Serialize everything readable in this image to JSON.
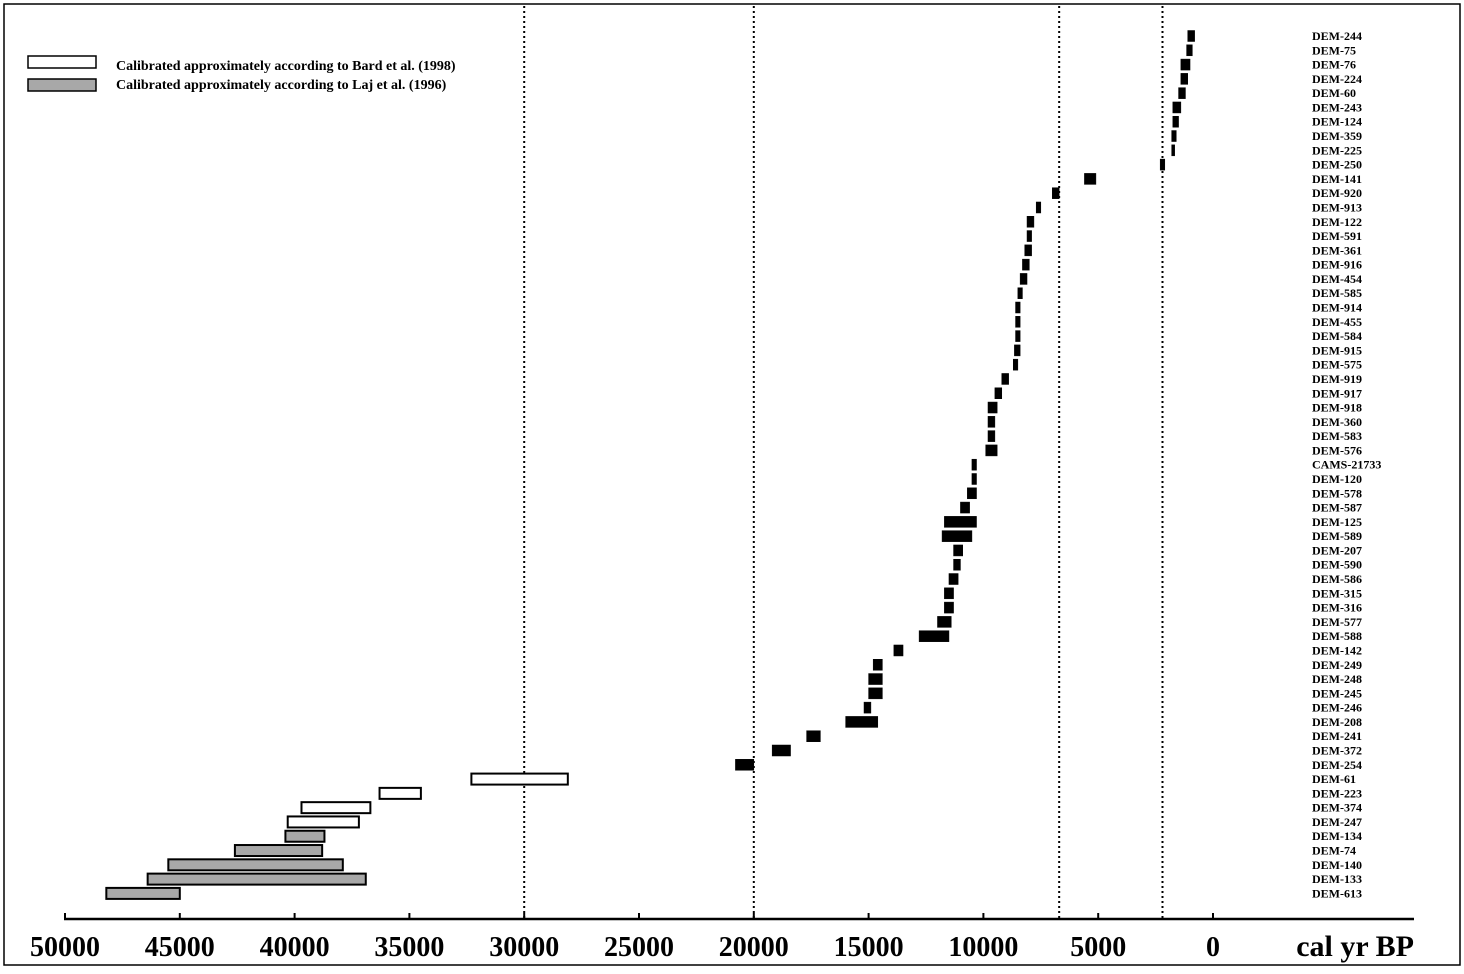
{
  "chart_data": {
    "type": "range-bar",
    "title": "",
    "x_label": "cal yr BP",
    "x_axis_reversed": true,
    "x_range": [
      50000,
      0
    ],
    "x_tick_labels": [
      "50000",
      "45000",
      "40000",
      "35000",
      "30000",
      "25000",
      "20000",
      "15000",
      "10000",
      "5000",
      "0"
    ],
    "reference_lines_x": [
      30000,
      20000,
      6700,
      2200
    ],
    "reference_line_style": "dotted",
    "legend": {
      "placement": "top-left",
      "items": [
        {
          "key": "bard",
          "label": "Calibrated approximately according to Bard et al. (1998)",
          "fill": "#ffffff"
        },
        {
          "key": "laj",
          "label": "Calibrated approximately according to Laj et al. (1996)",
          "fill": "#a8a8a8"
        }
      ]
    },
    "colors": {
      "default": "#000000",
      "bard": "#ffffff",
      "laj": "#a8a8a8"
    },
    "labels": [
      "DEM-244",
      "DEM-75",
      "DEM-76",
      "DEM-224",
      "DEM-60",
      "DEM-243",
      "DEM-124",
      "DEM-359",
      "DEM-225",
      "DEM-250",
      "DEM-141",
      "DEM-920",
      "DEM-913",
      "DEM-122",
      "DEM-591",
      "DEM-361",
      "DEM-916",
      "DEM-454",
      "DEM-585",
      "DEM-914",
      "DEM-455",
      "DEM-584",
      "DEM-915",
      "DEM-575",
      "DEM-919",
      "DEM-917",
      "DEM-918",
      "DEM-360",
      "DEM-583",
      "DEM-576",
      "CAMS-21733",
      "DEM-120",
      "DEM-578",
      "DEM-587",
      "DEM-125",
      "DEM-589",
      "DEM-207",
      "DEM-590",
      "DEM-586",
      "DEM-315",
      "DEM-316",
      "DEM-577",
      "DEM-588",
      "DEM-142",
      "DEM-249",
      "DEM-248",
      "DEM-245",
      "DEM-246",
      "DEM-208",
      "DEM-241",
      "DEM-372",
      "DEM-254",
      "DEM-61",
      "DEM-223",
      "DEM-374",
      "DEM-247",
      "DEM-134",
      "DEM-74",
      "DEM-140",
      "DEM-133",
      "DEM-613"
    ],
    "bars": [
      {
        "row": 0,
        "start": 1100,
        "end": 800,
        "cal": "default"
      },
      {
        "row": 1,
        "start": 1150,
        "end": 900,
        "cal": "default"
      },
      {
        "row": 2,
        "start": 1400,
        "end": 1000,
        "cal": "default"
      },
      {
        "row": 3,
        "start": 1400,
        "end": 1100,
        "cal": "default"
      },
      {
        "row": 4,
        "start": 1500,
        "end": 1200,
        "cal": "default"
      },
      {
        "row": 5,
        "start": 1750,
        "end": 1400,
        "cal": "default"
      },
      {
        "row": 6,
        "start": 1750,
        "end": 1500,
        "cal": "default"
      },
      {
        "row": 7,
        "start": 1800,
        "end": 1600,
        "cal": "default"
      },
      {
        "row": 8,
        "start": 1800,
        "end": 1700,
        "cal": "default"
      },
      {
        "row": 9,
        "start": 2300,
        "end": 2100,
        "cal": "default"
      },
      {
        "row": 10,
        "start": 5600,
        "end": 5100,
        "cal": "default"
      },
      {
        "row": 11,
        "start": 7000,
        "end": 6700,
        "cal": "default"
      },
      {
        "row": 12,
        "start": 7700,
        "end": 7500,
        "cal": "default"
      },
      {
        "row": 13,
        "start": 8100,
        "end": 7800,
        "cal": "default"
      },
      {
        "row": 14,
        "start": 8100,
        "end": 7900,
        "cal": "default"
      },
      {
        "row": 15,
        "start": 8200,
        "end": 7900,
        "cal": "default"
      },
      {
        "row": 16,
        "start": 8300,
        "end": 8000,
        "cal": "default"
      },
      {
        "row": 17,
        "start": 8400,
        "end": 8100,
        "cal": "default"
      },
      {
        "row": 18,
        "start": 8500,
        "end": 8300,
        "cal": "default"
      },
      {
        "row": 19,
        "start": 8600,
        "end": 8400,
        "cal": "default"
      },
      {
        "row": 20,
        "start": 8600,
        "end": 8400,
        "cal": "default"
      },
      {
        "row": 21,
        "start": 8600,
        "end": 8400,
        "cal": "default"
      },
      {
        "row": 22,
        "start": 8650,
        "end": 8400,
        "cal": "default"
      },
      {
        "row": 23,
        "start": 8700,
        "end": 8500,
        "cal": "default"
      },
      {
        "row": 24,
        "start": 9200,
        "end": 8900,
        "cal": "default"
      },
      {
        "row": 25,
        "start": 9500,
        "end": 9200,
        "cal": "default"
      },
      {
        "row": 26,
        "start": 9800,
        "end": 9400,
        "cal": "default"
      },
      {
        "row": 27,
        "start": 9800,
        "end": 9500,
        "cal": "default"
      },
      {
        "row": 28,
        "start": 9800,
        "end": 9500,
        "cal": "default"
      },
      {
        "row": 29,
        "start": 9900,
        "end": 9400,
        "cal": "default"
      },
      {
        "row": 30,
        "start": 10500,
        "end": 10300,
        "cal": "default"
      },
      {
        "row": 31,
        "start": 10500,
        "end": 10300,
        "cal": "default"
      },
      {
        "row": 32,
        "start": 10700,
        "end": 10300,
        "cal": "default"
      },
      {
        "row": 33,
        "start": 11000,
        "end": 10600,
        "cal": "default"
      },
      {
        "row": 34,
        "start": 11700,
        "end": 10300,
        "cal": "default"
      },
      {
        "row": 35,
        "start": 11800,
        "end": 10500,
        "cal": "default"
      },
      {
        "row": 36,
        "start": 11300,
        "end": 10900,
        "cal": "default"
      },
      {
        "row": 37,
        "start": 11300,
        "end": 11000,
        "cal": "default"
      },
      {
        "row": 38,
        "start": 11500,
        "end": 11100,
        "cal": "default"
      },
      {
        "row": 39,
        "start": 11700,
        "end": 11300,
        "cal": "default"
      },
      {
        "row": 40,
        "start": 11700,
        "end": 11300,
        "cal": "default"
      },
      {
        "row": 41,
        "start": 12000,
        "end": 11400,
        "cal": "default"
      },
      {
        "row": 42,
        "start": 12800,
        "end": 11500,
        "cal": "default"
      },
      {
        "row": 43,
        "start": 13900,
        "end": 13500,
        "cal": "default"
      },
      {
        "row": 44,
        "start": 14800,
        "end": 14400,
        "cal": "default"
      },
      {
        "row": 45,
        "start": 15000,
        "end": 14400,
        "cal": "default"
      },
      {
        "row": 46,
        "start": 15000,
        "end": 14400,
        "cal": "default"
      },
      {
        "row": 47,
        "start": 15200,
        "end": 14900,
        "cal": "default"
      },
      {
        "row": 48,
        "start": 16000,
        "end": 14600,
        "cal": "default"
      },
      {
        "row": 49,
        "start": 17700,
        "end": 17100,
        "cal": "default"
      },
      {
        "row": 50,
        "start": 19200,
        "end": 18400,
        "cal": "default"
      },
      {
        "row": 51,
        "start": 20800,
        "end": 20000,
        "cal": "default"
      },
      {
        "row": 52,
        "start": 32300,
        "end": 28100,
        "cal": "bard"
      },
      {
        "row": 53,
        "start": 36300,
        "end": 34500,
        "cal": "bard"
      },
      {
        "row": 54,
        "start": 39700,
        "end": 36700,
        "cal": "bard"
      },
      {
        "row": 55,
        "start": 40300,
        "end": 37200,
        "cal": "bard"
      },
      {
        "row": 56,
        "start": 40400,
        "end": 38700,
        "cal": "laj"
      },
      {
        "row": 57,
        "start": 42600,
        "end": 38800,
        "cal": "laj"
      },
      {
        "row": 58,
        "start": 45500,
        "end": 37900,
        "cal": "laj"
      },
      {
        "row": 59,
        "start": 46400,
        "end": 36900,
        "cal": "laj"
      },
      {
        "row": 60,
        "start": 48200,
        "end": 45000,
        "cal": "laj"
      }
    ]
  }
}
